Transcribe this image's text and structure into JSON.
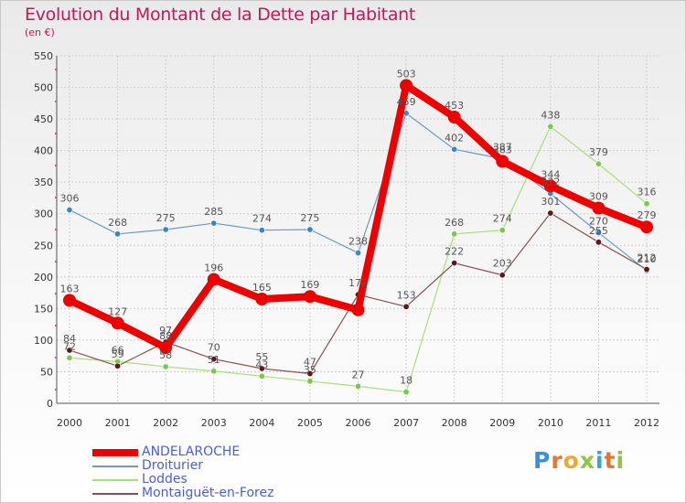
{
  "title": "Evolution du Montant de la Dette par Habitant",
  "subtitle": "(en €)",
  "brand": {
    "letters": [
      "P",
      "r",
      "o",
      "x",
      "i",
      "t",
      "i"
    ],
    "colors": [
      "#3a8fd8",
      "#e8742a",
      "#f2a62a",
      "#8dc63f",
      "#2fa8d8",
      "#e8742a",
      "#8dc63f"
    ]
  },
  "chart_data": {
    "type": "line",
    "title": "Evolution du Montant de la Dette par Habitant",
    "ylabel": "(en €)",
    "xlabel": "",
    "ylim": [
      0,
      550
    ],
    "yticks": [
      0,
      50,
      100,
      150,
      200,
      250,
      300,
      350,
      400,
      450,
      500,
      550
    ],
    "categories": [
      "2000",
      "2001",
      "2002",
      "2003",
      "2004",
      "2005",
      "2006",
      "2007",
      "2008",
      "2009",
      "2010",
      "2011",
      "2012"
    ],
    "grid": true,
    "legend_position": "bottom-left",
    "series": [
      {
        "name": "Droiturier",
        "color": "#6a9cc8",
        "marker": "#3a86c8",
        "width": 1.2,
        "values": [
          306,
          268,
          275,
          285,
          274,
          275,
          238,
          459,
          402,
          387,
          332,
          270,
          210
        ],
        "labels": [
          "306",
          "268",
          "275",
          "285",
          "274",
          "275",
          "238",
          "459",
          "402",
          "387",
          "332",
          "270",
          "210"
        ]
      },
      {
        "name": "Loddes",
        "color": "#a6e07a",
        "marker": "#7cc84a",
        "width": 1.2,
        "values": [
          72,
          66,
          58,
          51,
          43,
          35,
          27,
          18,
          268,
          274,
          438,
          379,
          316
        ],
        "labels": [
          "72",
          "66",
          "58",
          "51",
          "43",
          "35",
          "27",
          "18",
          "268",
          "274",
          "438",
          "379",
          "316"
        ]
      },
      {
        "name": "Montaiguët-en-Forez",
        "color": "#8a5050",
        "marker": "#5a1818",
        "width": 1.2,
        "values": [
          84,
          59,
          97,
          70,
          55,
          47,
          172,
          153,
          222,
          203,
          301,
          255,
          212
        ],
        "labels": [
          "84",
          "59",
          "97",
          "70",
          "55",
          "47",
          "172",
          "153",
          "222",
          "203",
          "301",
          "255",
          "212"
        ]
      },
      {
        "name": "ANDELAROCHE",
        "color": "#ee0000",
        "marker": "#ee0000",
        "width": 8,
        "values": [
          163,
          127,
          88,
          196,
          165,
          169,
          148,
          503,
          453,
          383,
          344,
          309,
          279
        ],
        "labels": [
          "163",
          "127",
          "88",
          "196",
          "165",
          "169",
          "",
          "503",
          "453",
          "383",
          "344",
          "309",
          "279"
        ]
      }
    ]
  }
}
